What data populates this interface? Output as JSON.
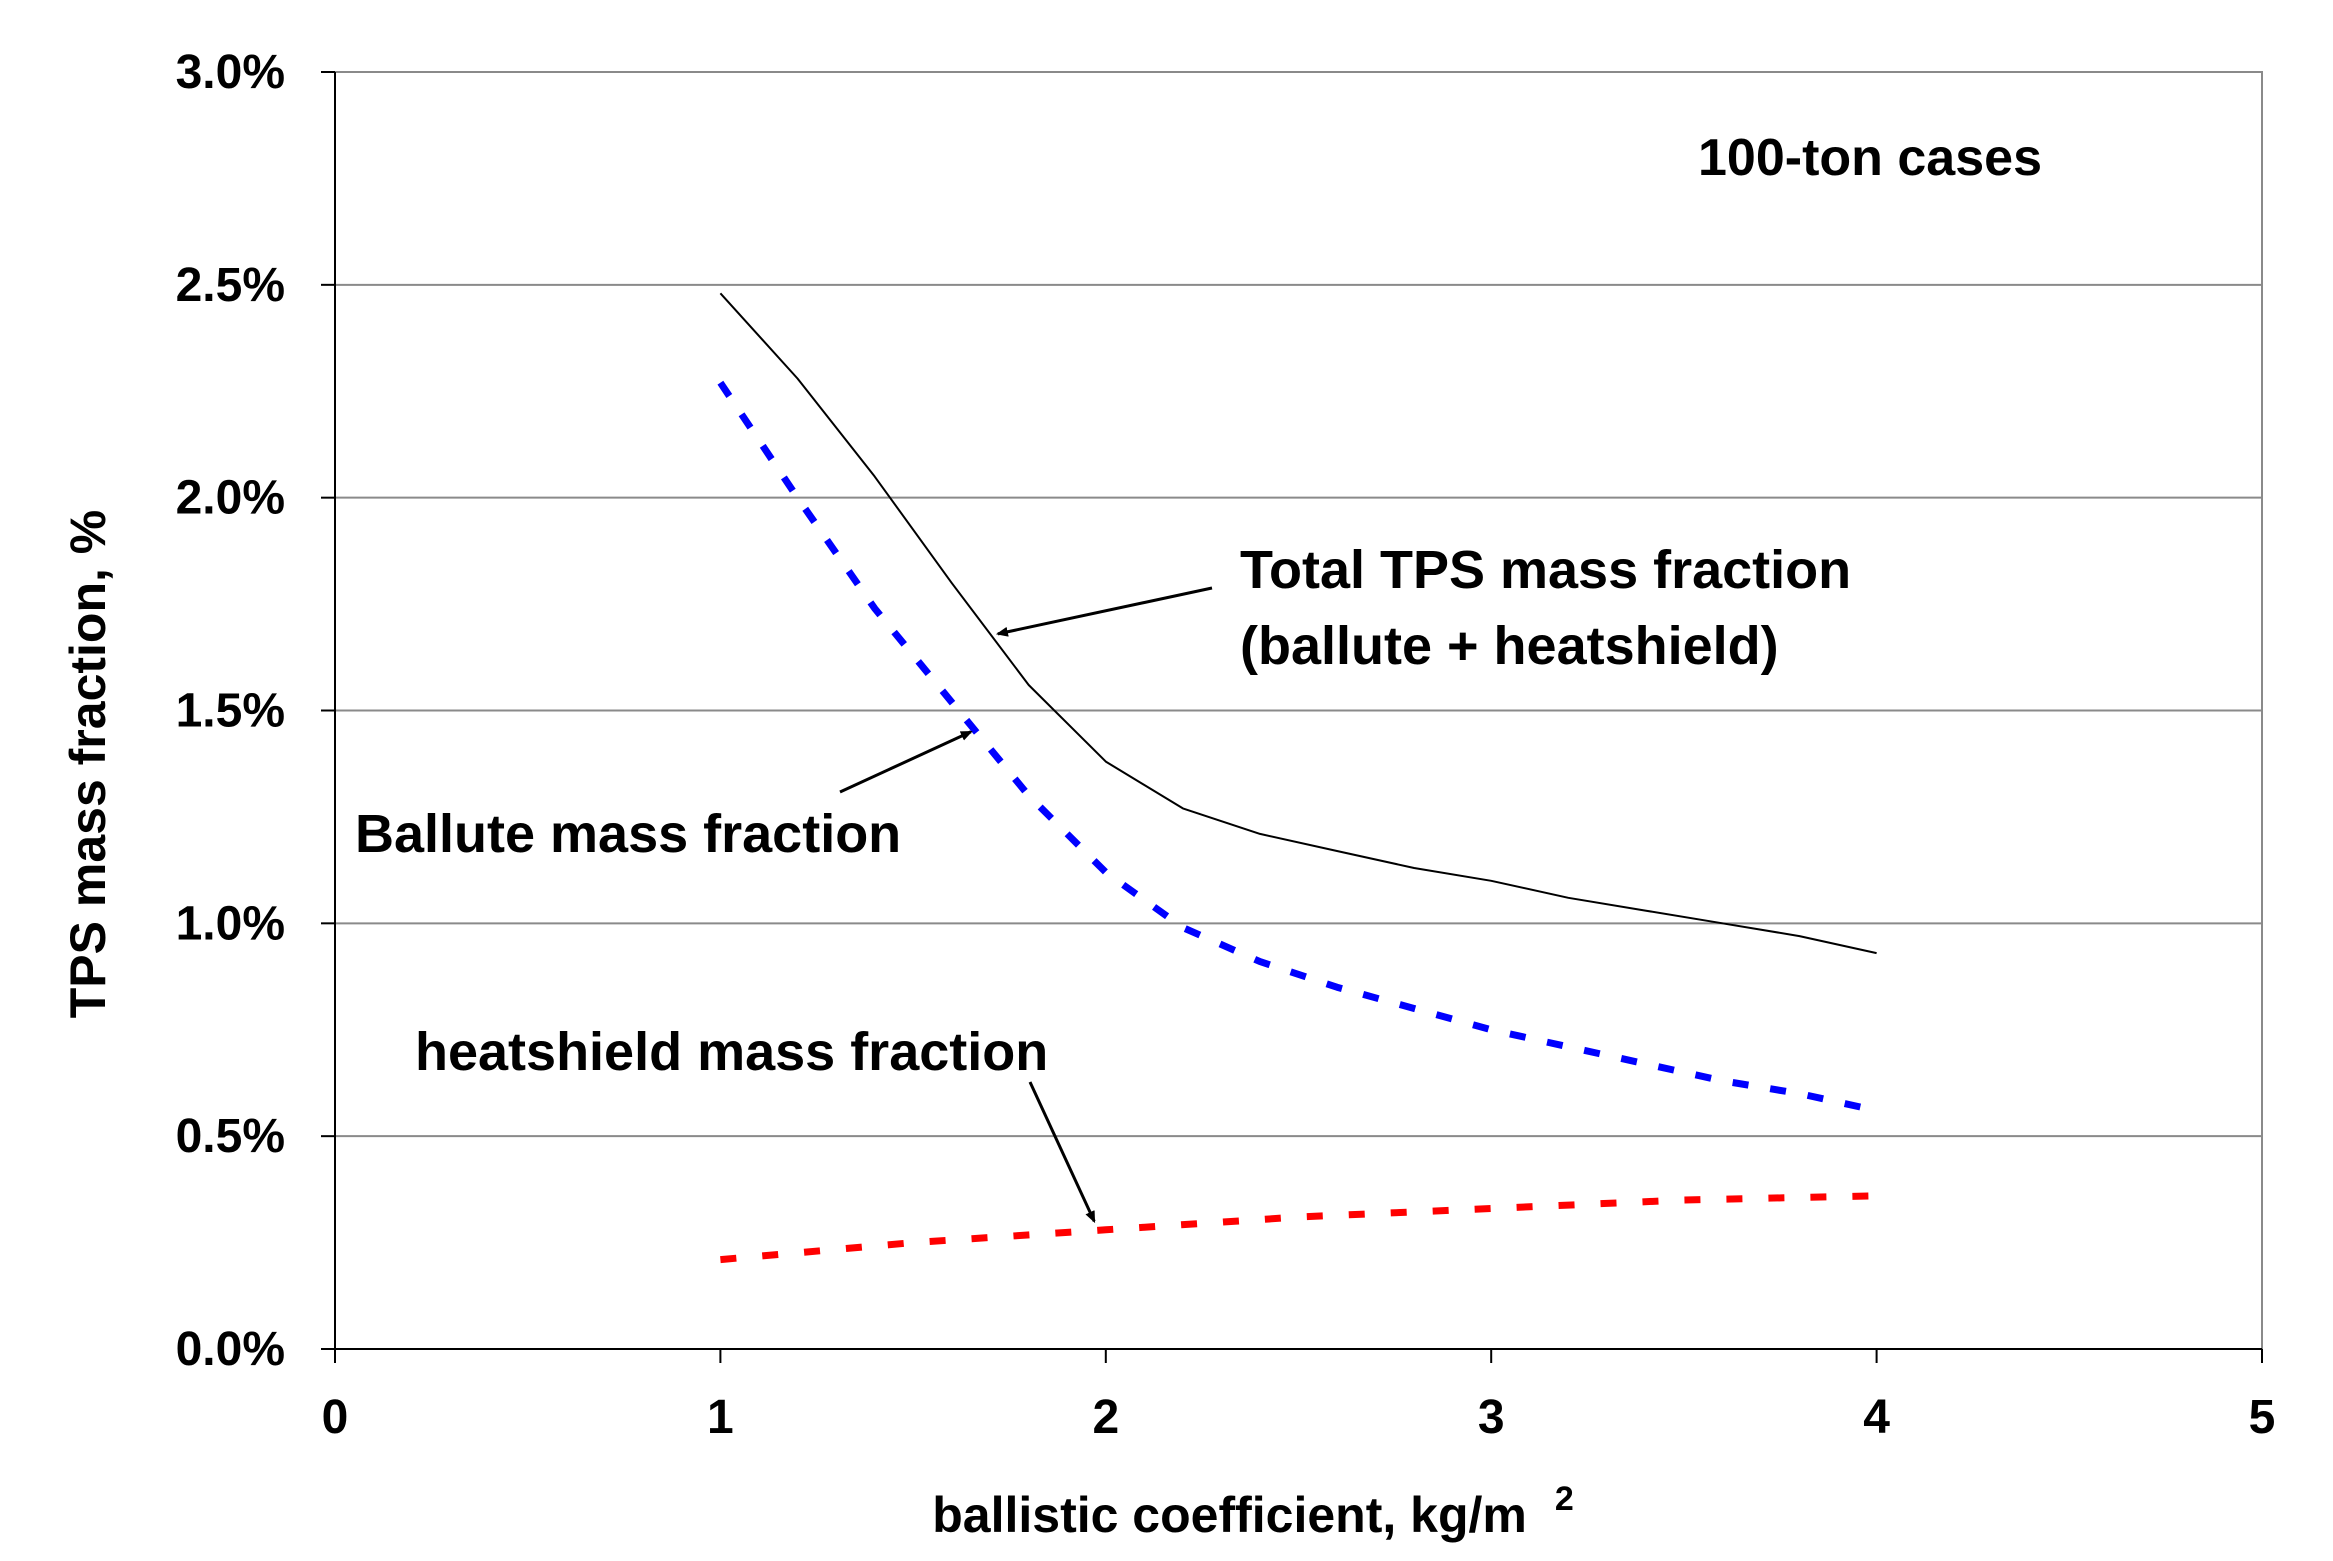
{
  "chart_data": {
    "type": "line",
    "title": "",
    "case_label": "100-ton cases",
    "xlabel": "ballistic coefficient, kg/m",
    "xlabel_superscript": "2",
    "ylabel": "TPS mass fraction, %",
    "xlim": [
      0,
      5
    ],
    "ylim": [
      0,
      3.0
    ],
    "x_ticks": [
      0,
      1,
      2,
      3,
      4,
      5
    ],
    "x_tick_labels": [
      "0",
      "1",
      "2",
      "3",
      "4",
      "5"
    ],
    "y_ticks": [
      0,
      0.5,
      1.0,
      1.5,
      2.0,
      2.5,
      3.0
    ],
    "y_tick_labels": [
      "0.0%",
      "0.5%",
      "1.0%",
      "1.5%",
      "2.0%",
      "2.5%",
      "3.0%"
    ],
    "grid": "horizontal",
    "legend": "none",
    "series": [
      {
        "key": "total",
        "color": "#000000",
        "style": "solid",
        "x": [
          1.0,
          1.2,
          1.4,
          1.6,
          1.8,
          2.0,
          2.2,
          2.4,
          2.6,
          2.8,
          3.0,
          3.2,
          3.4,
          3.6,
          3.8,
          4.0
        ],
        "y": [
          2.48,
          2.28,
          2.05,
          1.8,
          1.56,
          1.38,
          1.27,
          1.21,
          1.17,
          1.13,
          1.1,
          1.06,
          1.03,
          1.0,
          0.97,
          0.93
        ]
      },
      {
        "key": "ballute",
        "color": "#0000ff",
        "style": "dashed",
        "x": [
          1.0,
          1.2,
          1.4,
          1.6,
          1.8,
          2.0,
          2.2,
          2.4,
          2.6,
          2.8,
          3.0,
          3.2,
          3.4,
          3.6,
          3.8,
          4.0
        ],
        "y": [
          2.27,
          2.0,
          1.74,
          1.52,
          1.3,
          1.12,
          0.99,
          0.91,
          0.85,
          0.8,
          0.75,
          0.71,
          0.67,
          0.63,
          0.6,
          0.56
        ]
      },
      {
        "key": "heatshield",
        "color": "#ff0000",
        "style": "dashed",
        "x": [
          1.0,
          1.5,
          2.0,
          2.5,
          3.0,
          3.5,
          4.0
        ],
        "y": [
          0.21,
          0.25,
          0.28,
          0.31,
          0.33,
          0.35,
          0.36
        ]
      }
    ],
    "annotations": [
      {
        "lines": [
          "Total TPS mass fraction",
          "(ballute + heatshield)"
        ],
        "points_to": {
          "x": 1.72,
          "y": 1.68
        }
      },
      {
        "lines": [
          "Ballute mass fraction"
        ],
        "points_to": {
          "x": 1.65,
          "y": 1.45
        }
      },
      {
        "lines": [
          "heatshield mass fraction"
        ],
        "points_to": {
          "x": 1.97,
          "y": 0.3
        }
      }
    ]
  }
}
